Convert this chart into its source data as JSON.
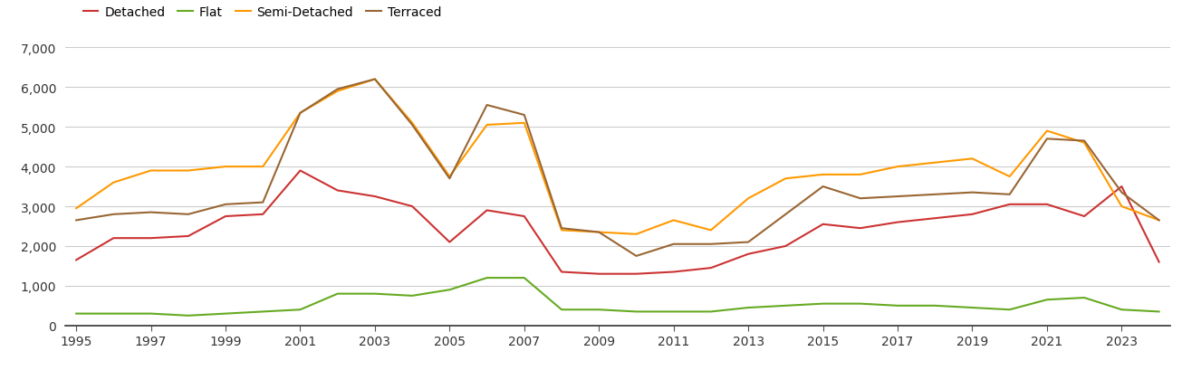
{
  "years": [
    1995,
    1996,
    1997,
    1998,
    1999,
    2000,
    2001,
    2002,
    2003,
    2004,
    2005,
    2006,
    2007,
    2008,
    2009,
    2010,
    2011,
    2012,
    2013,
    2014,
    2015,
    2016,
    2017,
    2018,
    2019,
    2020,
    2021,
    2022,
    2023,
    2024
  ],
  "detached": [
    1650,
    2200,
    2200,
    2250,
    2750,
    2800,
    3900,
    3400,
    3250,
    3000,
    2100,
    2900,
    2750,
    1350,
    1300,
    1300,
    1350,
    1450,
    1800,
    2000,
    2550,
    2450,
    2600,
    2700,
    2800,
    3050,
    3050,
    2750,
    3500,
    1600
  ],
  "flat": [
    300,
    300,
    300,
    250,
    300,
    350,
    400,
    800,
    800,
    750,
    900,
    1200,
    1200,
    400,
    400,
    350,
    350,
    350,
    450,
    500,
    550,
    550,
    500,
    500,
    450,
    400,
    650,
    700,
    400,
    350
  ],
  "semi_detached": [
    2950,
    3600,
    3900,
    3900,
    4000,
    4000,
    5350,
    5900,
    6200,
    5100,
    3750,
    5050,
    5100,
    2400,
    2350,
    2300,
    2650,
    2400,
    3200,
    3700,
    3800,
    3800,
    4000,
    4100,
    4200,
    3750,
    4900,
    4600,
    3000,
    2650
  ],
  "terraced": [
    2650,
    2800,
    2850,
    2800,
    3050,
    3100,
    5350,
    5950,
    6200,
    5050,
    3700,
    5550,
    5300,
    2450,
    2350,
    1750,
    2050,
    2050,
    2100,
    2800,
    3500,
    3200,
    3250,
    3300,
    3350,
    3300,
    4700,
    4650,
    3350,
    2650
  ],
  "colors": {
    "detached": "#cc3333",
    "flat": "#66aa22",
    "semi_detached": "#ff9900",
    "terraced": "#996633"
  },
  "legend_labels": [
    "Detached",
    "Flat",
    "Semi-Detached",
    "Terraced"
  ],
  "ylim": [
    0,
    7000
  ],
  "yticks": [
    0,
    1000,
    2000,
    3000,
    4000,
    5000,
    6000,
    7000
  ],
  "background_color": "#ffffff",
  "grid_color": "#cccccc",
  "linewidth": 1.5,
  "tick_fontsize": 10,
  "legend_fontsize": 10
}
